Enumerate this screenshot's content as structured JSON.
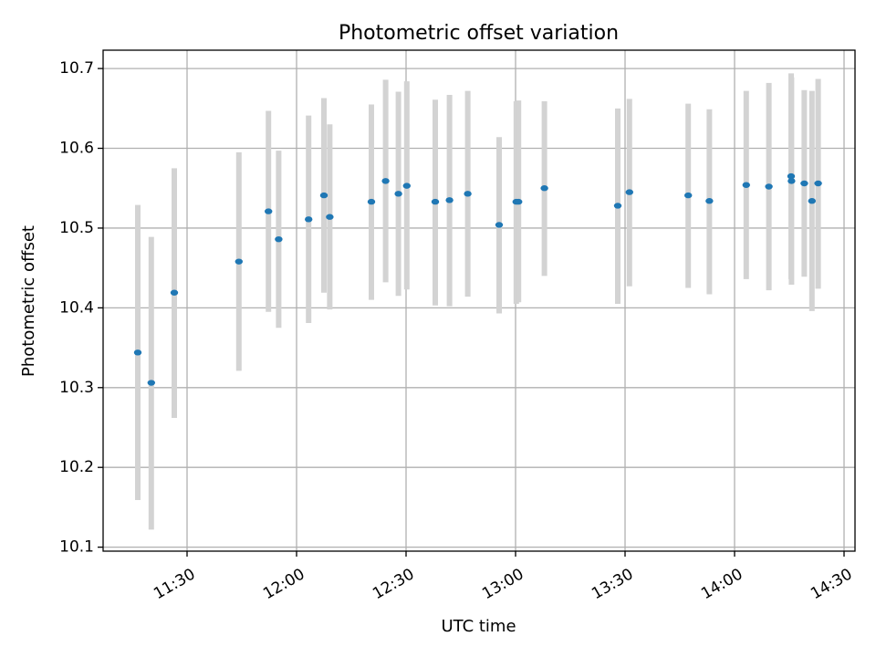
{
  "chart_data": {
    "type": "scatter",
    "title": "Photometric offset variation",
    "xlabel": "UTC time",
    "ylabel": "Photometric offset",
    "x_tick_labels": [
      "11:30",
      "12:00",
      "12:30",
      "13:00",
      "13:30",
      "14:00",
      "14:30"
    ],
    "x_tick_minutes": [
      690,
      720,
      750,
      780,
      810,
      840,
      870
    ],
    "xlim_minutes": [
      667,
      873
    ],
    "y_ticks": [
      10.1,
      10.2,
      10.3,
      10.4,
      10.5,
      10.6,
      10.7
    ],
    "y_tick_labels": [
      "10.1",
      "10.2",
      "10.3",
      "10.4",
      "10.5",
      "10.6",
      "10.7"
    ],
    "ylim": [
      10.095,
      10.723
    ],
    "grid": true,
    "colors": {
      "point": "#1f77b4",
      "errorbar": "#d3d3d3",
      "grid": "#b0b0b0",
      "axes": "#000000"
    },
    "points": [
      {
        "x": "11:16.5",
        "y": 10.344,
        "ylo": 10.159,
        "yhi": 10.529
      },
      {
        "x": "11:20.2",
        "y": 10.306,
        "ylo": 10.122,
        "yhi": 10.489
      },
      {
        "x": "11:26.5",
        "y": 10.419,
        "ylo": 10.262,
        "yhi": 10.575
      },
      {
        "x": "11:44.2",
        "y": 10.458,
        "ylo": 10.321,
        "yhi": 10.595
      },
      {
        "x": "11:52.3",
        "y": 10.521,
        "ylo": 10.395,
        "yhi": 10.647
      },
      {
        "x": "11:55.1",
        "y": 10.486,
        "ylo": 10.375,
        "yhi": 10.597
      },
      {
        "x": "12:03.3",
        "y": 10.511,
        "ylo": 10.381,
        "yhi": 10.641
      },
      {
        "x": "12:07.5",
        "y": 10.541,
        "ylo": 10.419,
        "yhi": 10.663
      },
      {
        "x": "12:09.1",
        "y": 10.514,
        "ylo": 10.398,
        "yhi": 10.63
      },
      {
        "x": "12:20.5",
        "y": 10.533,
        "ylo": 10.41,
        "yhi": 10.655
      },
      {
        "x": "12:24.4",
        "y": 10.559,
        "ylo": 10.432,
        "yhi": 10.686
      },
      {
        "x": "12:27.9",
        "y": 10.543,
        "ylo": 10.415,
        "yhi": 10.671
      },
      {
        "x": "12:30.2",
        "y": 10.553,
        "ylo": 10.423,
        "yhi": 10.684
      },
      {
        "x": "12:38.0",
        "y": 10.533,
        "ylo": 10.403,
        "yhi": 10.661
      },
      {
        "x": "12:41.9",
        "y": 10.535,
        "ylo": 10.402,
        "yhi": 10.667
      },
      {
        "x": "12:46.9",
        "y": 10.543,
        "ylo": 10.414,
        "yhi": 10.672
      },
      {
        "x": "12:55.5",
        "y": 10.504,
        "ylo": 10.393,
        "yhi": 10.614
      },
      {
        "x": "13:00.2",
        "y": 10.533,
        "ylo": 10.405,
        "yhi": 10.659
      },
      {
        "x": "13:00.8",
        "y": 10.533,
        "ylo": 10.407,
        "yhi": 10.66
      },
      {
        "x": "13:07.9",
        "y": 10.55,
        "ylo": 10.44,
        "yhi": 10.659
      },
      {
        "x": "13:28.0",
        "y": 10.528,
        "ylo": 10.405,
        "yhi": 10.65
      },
      {
        "x": "13:31.2",
        "y": 10.545,
        "ylo": 10.427,
        "yhi": 10.662
      },
      {
        "x": "13:47.3",
        "y": 10.541,
        "ylo": 10.425,
        "yhi": 10.656
      },
      {
        "x": "13:53.1",
        "y": 10.534,
        "ylo": 10.417,
        "yhi": 10.649
      },
      {
        "x": "14:03.2",
        "y": 10.554,
        "ylo": 10.436,
        "yhi": 10.672
      },
      {
        "x": "14:09.4",
        "y": 10.552,
        "ylo": 10.422,
        "yhi": 10.682
      },
      {
        "x": "14:15.5",
        "y": 10.565,
        "ylo": 10.436,
        "yhi": 10.694
      },
      {
        "x": "14:15.6",
        "y": 10.559,
        "ylo": 10.429,
        "yhi": 10.689
      },
      {
        "x": "14:19.1",
        "y": 10.556,
        "ylo": 10.439,
        "yhi": 10.673
      },
      {
        "x": "14:21.2",
        "y": 10.534,
        "ylo": 10.396,
        "yhi": 10.672
      },
      {
        "x": "14:22.9",
        "y": 10.556,
        "ylo": 10.424,
        "yhi": 10.687
      }
    ]
  }
}
